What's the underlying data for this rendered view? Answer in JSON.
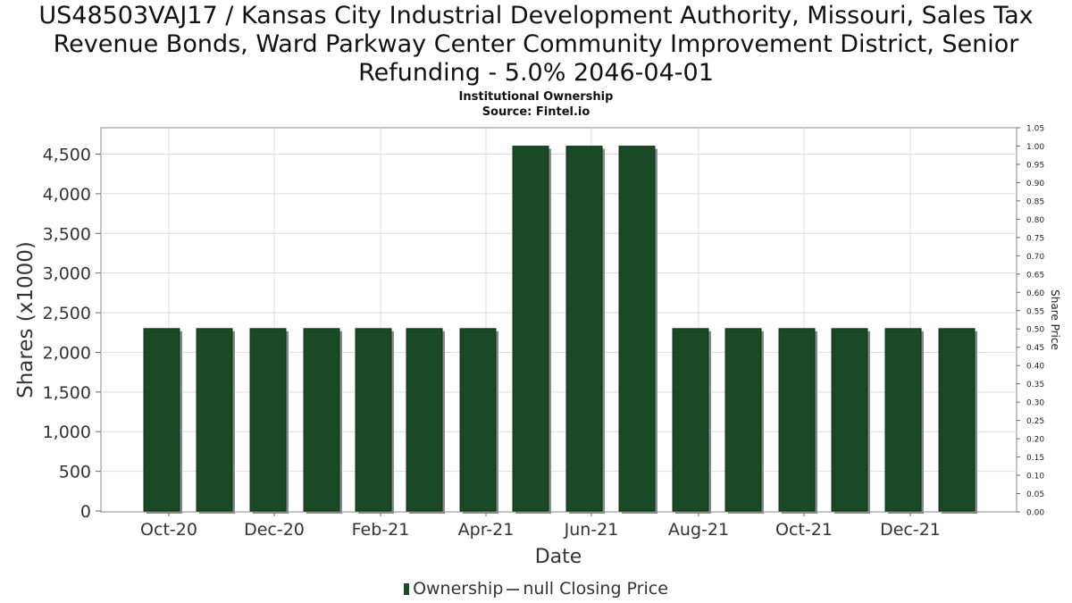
{
  "header": {
    "title": "US48503VAJ17 / Kansas City Industrial Development Authority, Missouri, Sales Tax Revenue Bonds, Ward Parkway Center Community Improvement District, Senior Refunding - 5.0% 2046-04-01",
    "subtitle_line1": "Institutional Ownership",
    "subtitle_line2": "Source: Fintel.io"
  },
  "legend": {
    "ownership": "Ownership",
    "price": "null Closing Price"
  },
  "colors": {
    "bar": "#1a4a25",
    "bar_shadow": "#8a8a8a",
    "grid": "#dddddd"
  },
  "chart_data": {
    "type": "bar",
    "xlabel": "Date",
    "ylabel": "Shares (x1000)",
    "y2label": "Share Price",
    "ylim": [
      0,
      4800
    ],
    "y2lim": [
      0,
      1.05
    ],
    "yticks": [
      "0",
      "500",
      "1,000",
      "1,500",
      "2,000",
      "2,500",
      "3,000",
      "3,500",
      "4,000",
      "4,500"
    ],
    "y2ticks": [
      "0.00",
      "0.05",
      "0.10",
      "0.15",
      "0.20",
      "0.25",
      "0.30",
      "0.35",
      "0.40",
      "0.45",
      "0.50",
      "0.55",
      "0.60",
      "0.65",
      "0.70",
      "0.75",
      "0.80",
      "0.85",
      "0.90",
      "0.95",
      "1.00",
      "1.05"
    ],
    "xticks": [
      "Oct-20",
      "Dec-20",
      "Feb-21",
      "Apr-21",
      "Jun-21",
      "Aug-21",
      "Oct-21",
      "Dec-21"
    ],
    "series": [
      {
        "name": "Ownership",
        "values": [
          2300,
          2300,
          2300,
          2300,
          2300,
          2300,
          2300,
          4600,
          4600,
          4600,
          2300,
          2300,
          2300,
          2300,
          2300,
          2300
        ]
      }
    ],
    "grid": true,
    "legend_position": "bottom"
  }
}
